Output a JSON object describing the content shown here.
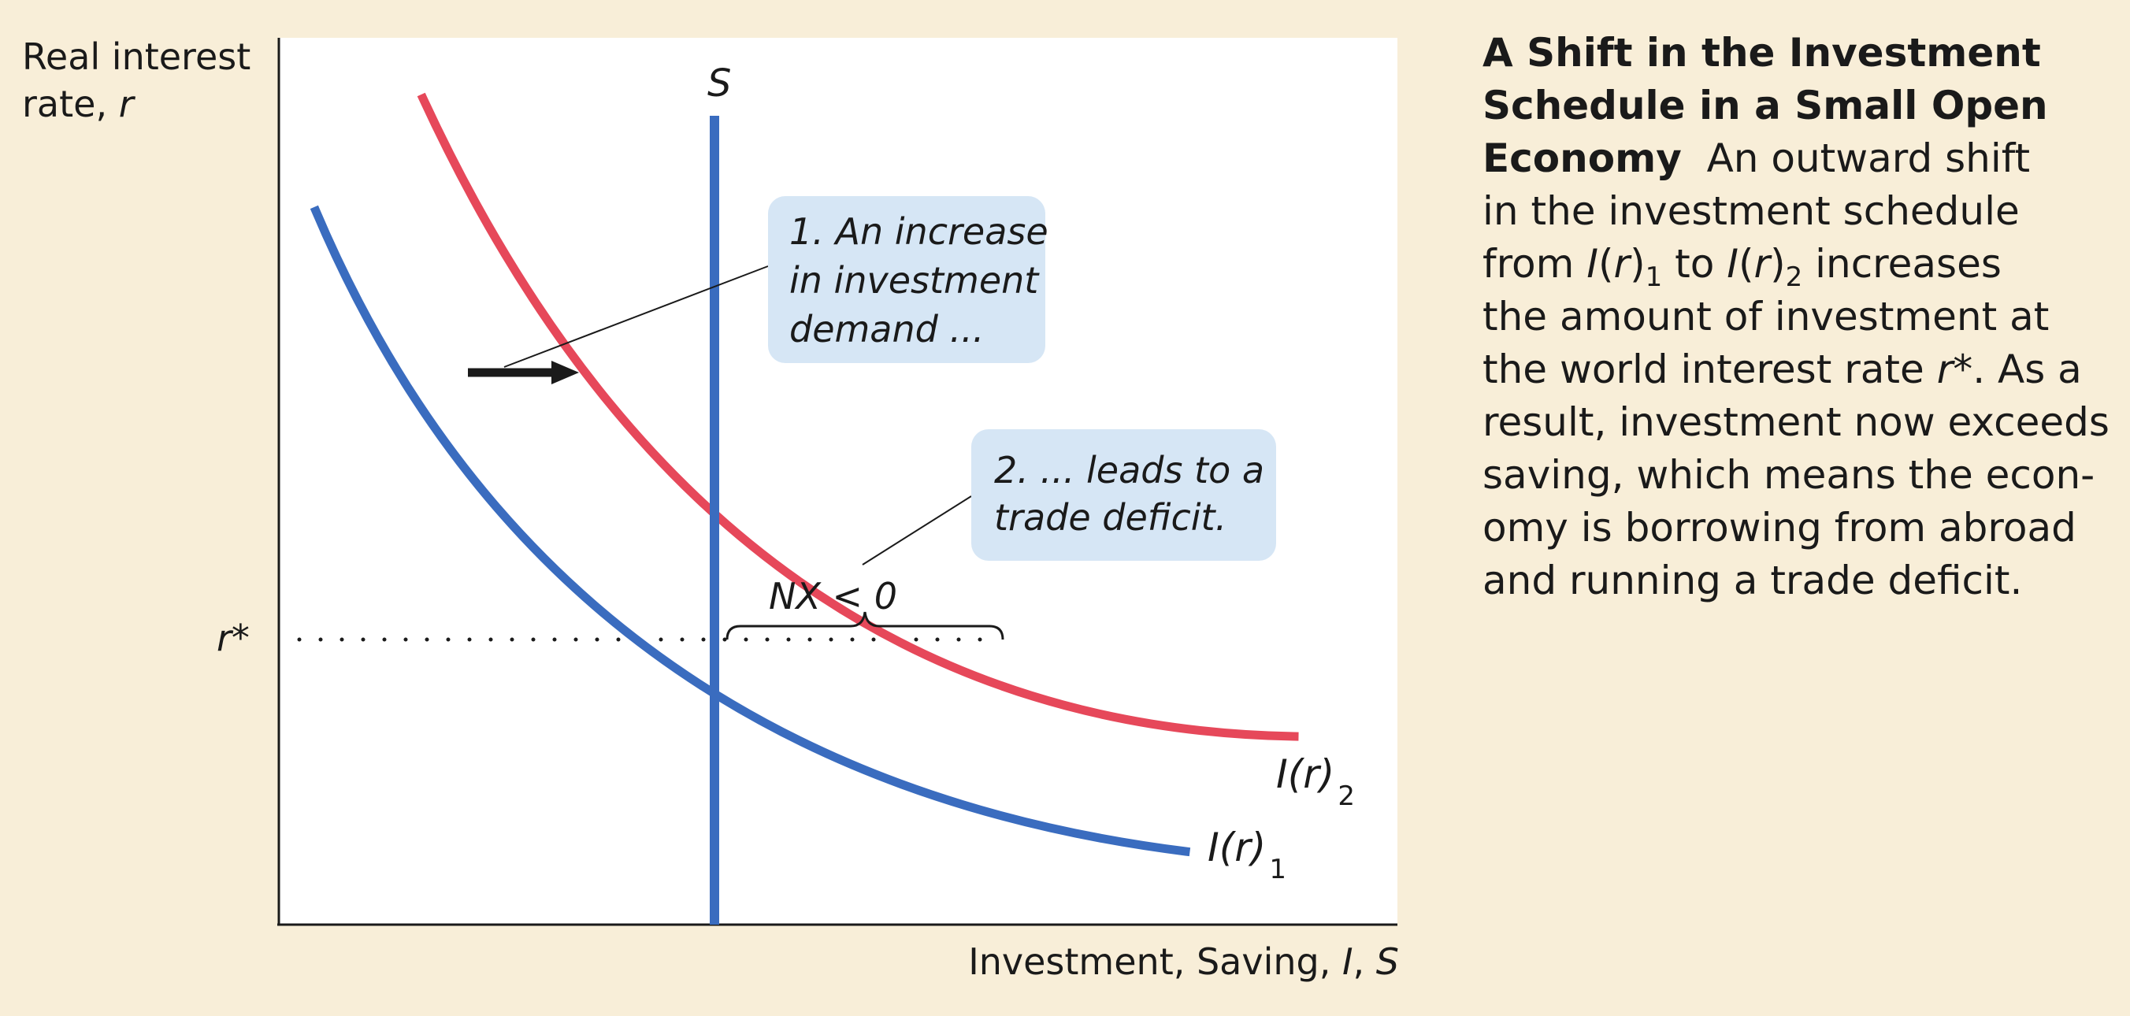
{
  "colors": {
    "background": "#f8eed8",
    "plot_bg": "#ffffff",
    "curve_blue": "#3a6cbf",
    "curve_red": "#e6485a",
    "callout_bg": "#d6e6f5",
    "text": "#1a1a1a"
  },
  "axes": {
    "y_label_line1": "Real interest",
    "y_label_line2_prefix": "rate, ",
    "y_label_line2_var": "r",
    "x_label_prefix": "Investment, Saving, ",
    "x_label_vars": "I",
    "x_label_sep": ", ",
    "x_label_vars2": "S"
  },
  "labels": {
    "saving": "S",
    "r_star": "r*",
    "nx": "NX < 0",
    "curve1_main": "I(r)",
    "curve1_sub": "1",
    "curve2_main": "I(r)",
    "curve2_sub": "2"
  },
  "callouts": {
    "c1_line1": "1. An increase",
    "c1_line2": "in investment",
    "c1_line3": "demand ...",
    "c2_line1": "2. ... leads to a",
    "c2_line2": "trade deficit."
  },
  "caption": {
    "title_line1": "A Shift in the Investment",
    "title_line2": "Schedule in a Small Open",
    "title_line3": "Economy",
    "l1": "An outward shift",
    "l2": "in the investment schedule",
    "l3a": "from ",
    "l3b": " to ",
    "l3c": " increases",
    "var_I": "I",
    "var_r": "r",
    "sub1": "1",
    "sub2": "2",
    "l4": "the amount of investment at",
    "l5a": "the world interest rate ",
    "l5var": "r*",
    "l5b": ". As a",
    "l6": "result, investment now exceeds",
    "l7": "saving, which means the econ-",
    "l8": "omy is borrowing from abroad",
    "l9": "and running a trade deficit."
  }
}
